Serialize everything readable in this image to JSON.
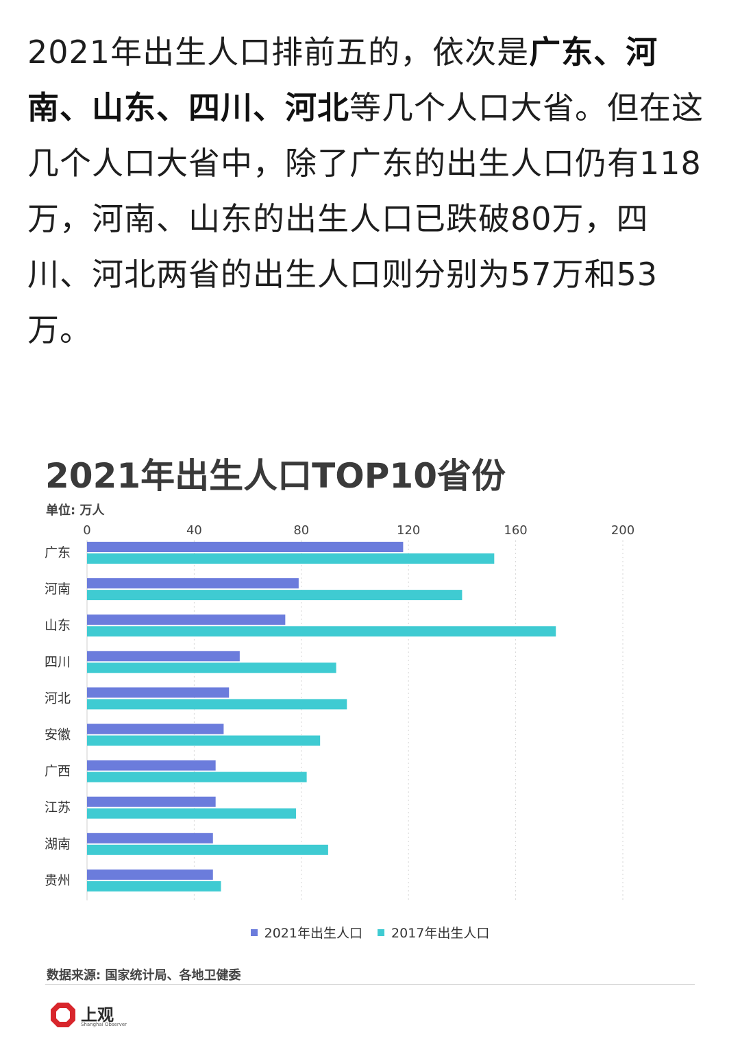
{
  "article": {
    "t1": "2021年出生人口排前五的，依次是",
    "b1": "广东、河南、山东、四川、河北",
    "t2": "等几个人口大省。但在这几个人口大省中，除了广东的出生人口仍有118万，河南、山东的出生人口已跌破80万，四川、河北两省的出生人口则分别为57万和53万。"
  },
  "chart_data": {
    "type": "bar",
    "orientation": "horizontal",
    "title": "2021年出生人口TOP10省份",
    "unit": "单位: 万人",
    "categories": [
      "广东",
      "河南",
      "山东",
      "四川",
      "河北",
      "安徽",
      "广西",
      "江苏",
      "湖南",
      "贵州"
    ],
    "series": [
      {
        "name": "2021年出生人口",
        "color": "#6b7cdc",
        "values": [
          118,
          79,
          74,
          57,
          53,
          51,
          48,
          48,
          47,
          47
        ]
      },
      {
        "name": "2017年出生人口",
        "color": "#3fcbd2",
        "values": [
          152,
          140,
          175,
          93,
          97,
          87,
          82,
          78,
          90,
          50
        ]
      }
    ],
    "xlim": [
      0,
      200
    ],
    "xticks": [
      0,
      40,
      80,
      120,
      160,
      200
    ],
    "grid": true,
    "legend_position": "bottom",
    "source": "数据来源: 国家统计局、各地卫健委"
  },
  "logo": {
    "name": "上观",
    "sub": "Shanghai Observer"
  }
}
